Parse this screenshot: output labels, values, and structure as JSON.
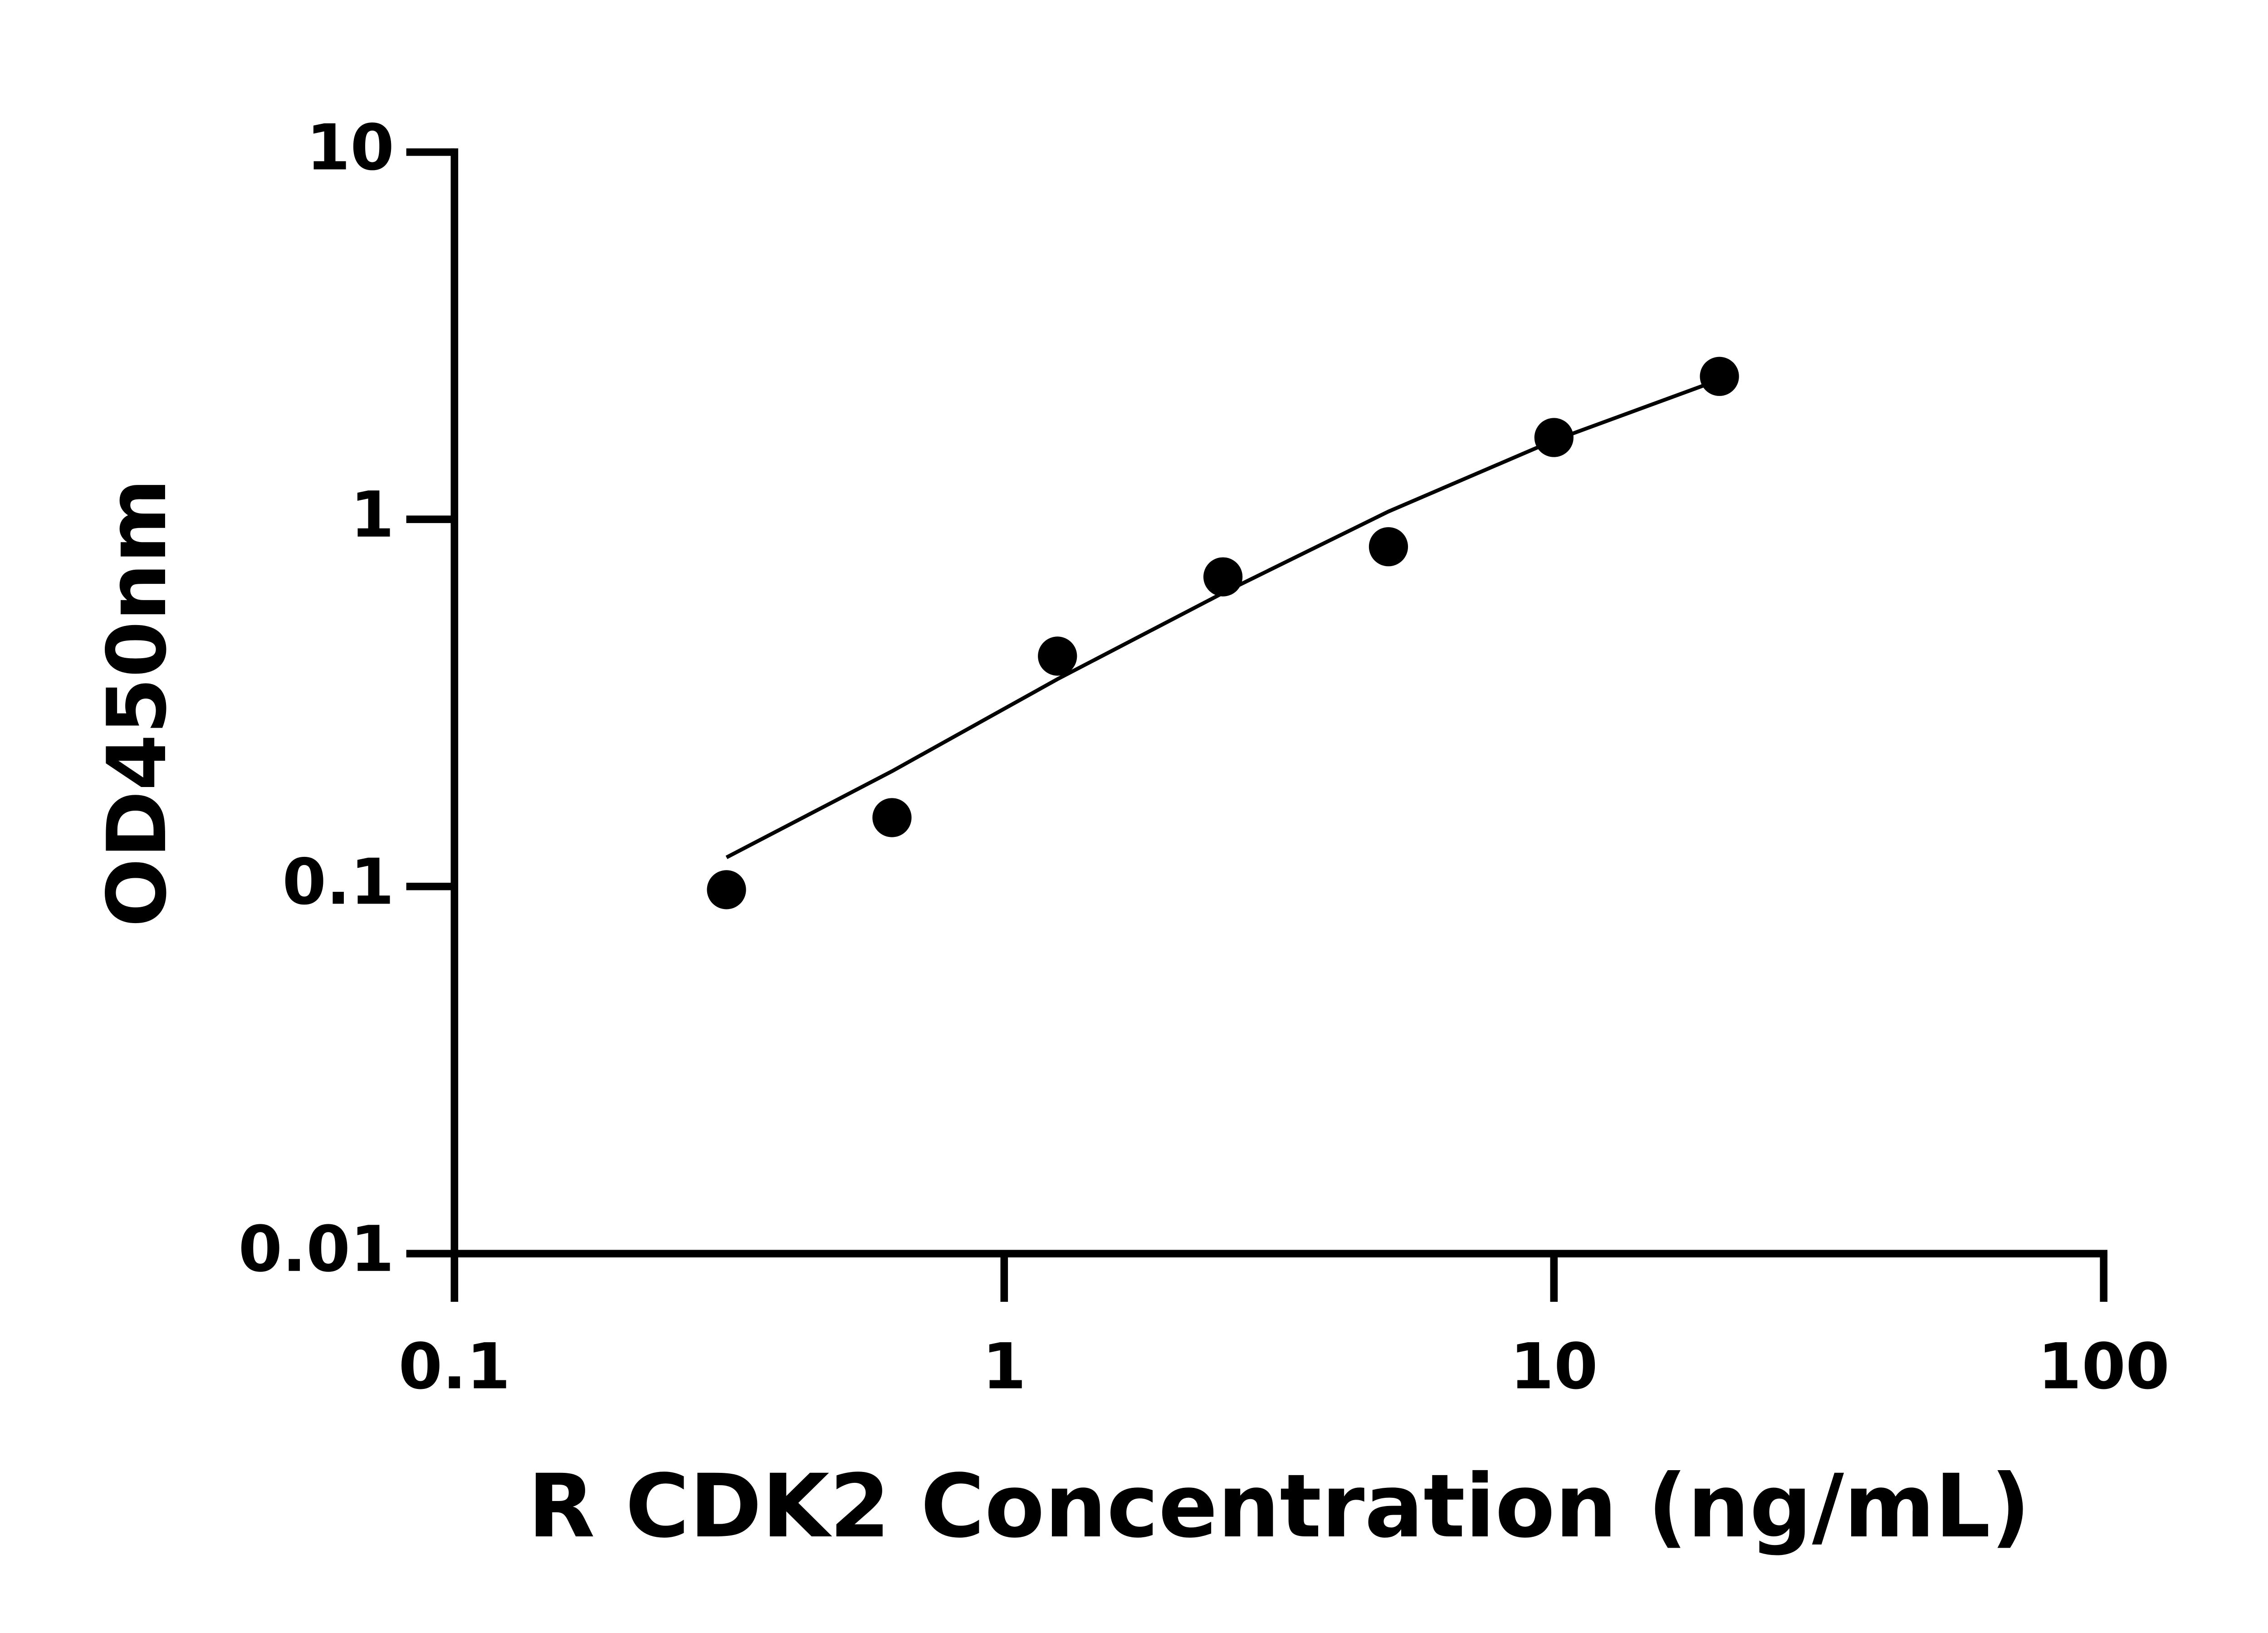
{
  "chart_data": {
    "type": "scatter",
    "x_label": "R CDK2 Concentration (ng/mL)",
    "y_label": "OD450nm",
    "x": [
      0.3125,
      0.625,
      1.25,
      2.5,
      5,
      10,
      20
    ],
    "series": [
      {
        "color": "#000000",
        "mode": "markers",
        "values": [
          0.098,
          0.154,
          0.424,
          0.697,
          0.842,
          1.67,
          2.45
        ]
      },
      {
        "color": "#000000",
        "mode": "line",
        "values": [
          0.12,
          0.206,
          0.367,
          0.63,
          1.05,
          1.64,
          2.4
        ]
      }
    ],
    "xscale": "log",
    "yscale": "log",
    "xlim": [
      0.1,
      100
    ],
    "ylim": [
      0.01,
      10
    ],
    "xticks": [
      0.1,
      1,
      10,
      100
    ],
    "yticks": [
      0.01,
      0.1,
      1,
      10
    ],
    "grid": false
  }
}
